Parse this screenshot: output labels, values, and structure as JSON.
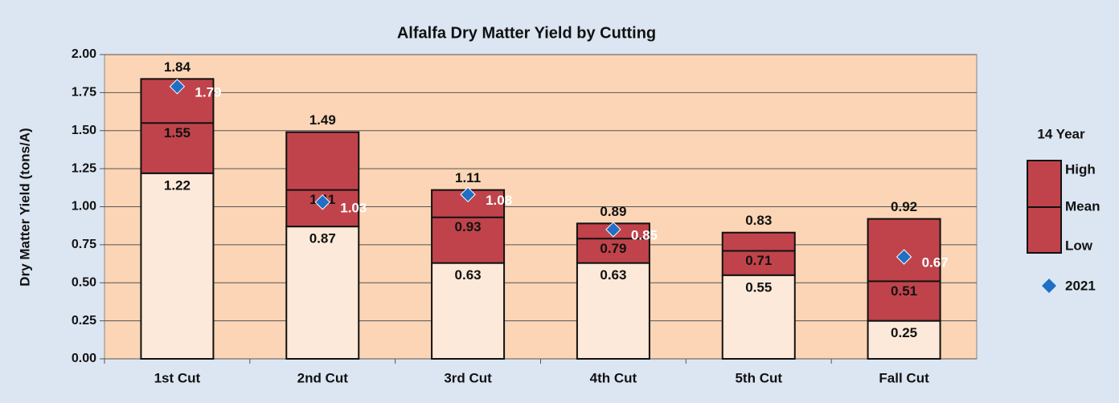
{
  "chart_data": {
    "type": "floating_bar",
    "title": "Alfalfa Dry Matter Yield by Cutting",
    "y_label": "Dry Matter Yield (tons/A)",
    "legend_title": "14 Year",
    "categories": [
      "1st Cut",
      "2nd Cut",
      "3rd Cut",
      "4th Cut",
      "5th Cut",
      "Fall Cut"
    ],
    "series": [
      {
        "name": "High",
        "color": "#c0434b",
        "values": [
          1.84,
          1.49,
          1.11,
          0.89,
          0.83,
          0.92
        ]
      },
      {
        "name": "Mean",
        "color": "#c0434b",
        "values": [
          1.55,
          1.11,
          0.93,
          0.79,
          0.71,
          0.51
        ]
      },
      {
        "name": "Low",
        "color": "#fde9d9",
        "values": [
          1.22,
          0.87,
          0.63,
          0.63,
          0.55,
          0.25
        ]
      },
      {
        "name": "2021",
        "color": "#1f6fc5",
        "values": [
          1.79,
          1.03,
          1.08,
          0.85,
          null,
          0.67
        ]
      }
    ],
    "ylim": [
      0,
      2
    ],
    "yticks": [
      {
        "value": 0,
        "label": "0.00"
      },
      0.25,
      {
        "value": 0.5,
        "label": "0.50"
      },
      0.75,
      {
        "value": 1,
        "label": "1.00"
      },
      1.25,
      {
        "value": 1.5,
        "label": "1.50"
      },
      1.75,
      {
        "value": 2,
        "label": "2.00"
      }
    ],
    "grid": true,
    "plot_background": "#fbd5b5"
  }
}
